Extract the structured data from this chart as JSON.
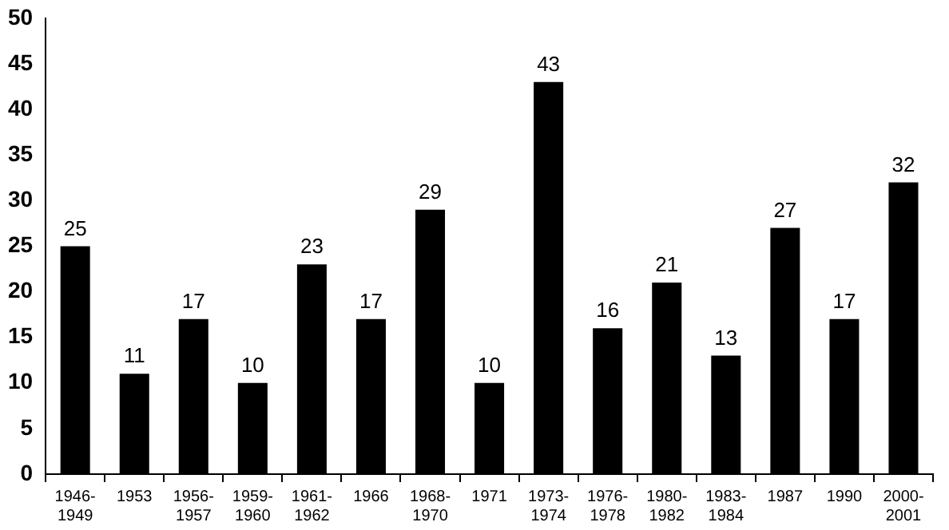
{
  "chart_data": {
    "type": "bar",
    "categories": [
      "1946-1949",
      "1953",
      "1956-1957",
      "1959-1960",
      "1961-1962",
      "1966",
      "1968-1970",
      "1971",
      "1973-1974",
      "1976-1978",
      "1980-1982",
      "1983-1984",
      "1987",
      "1990",
      "2000-2001"
    ],
    "values": [
      25,
      11,
      17,
      10,
      23,
      17,
      29,
      10,
      43,
      16,
      21,
      13,
      27,
      17,
      32
    ],
    "color": "#000000",
    "ylim": [
      0,
      50
    ],
    "yticks": [
      0,
      5,
      10,
      15,
      20,
      25,
      30,
      35,
      40,
      45,
      50
    ],
    "grid": false,
    "data_labels": true
  }
}
